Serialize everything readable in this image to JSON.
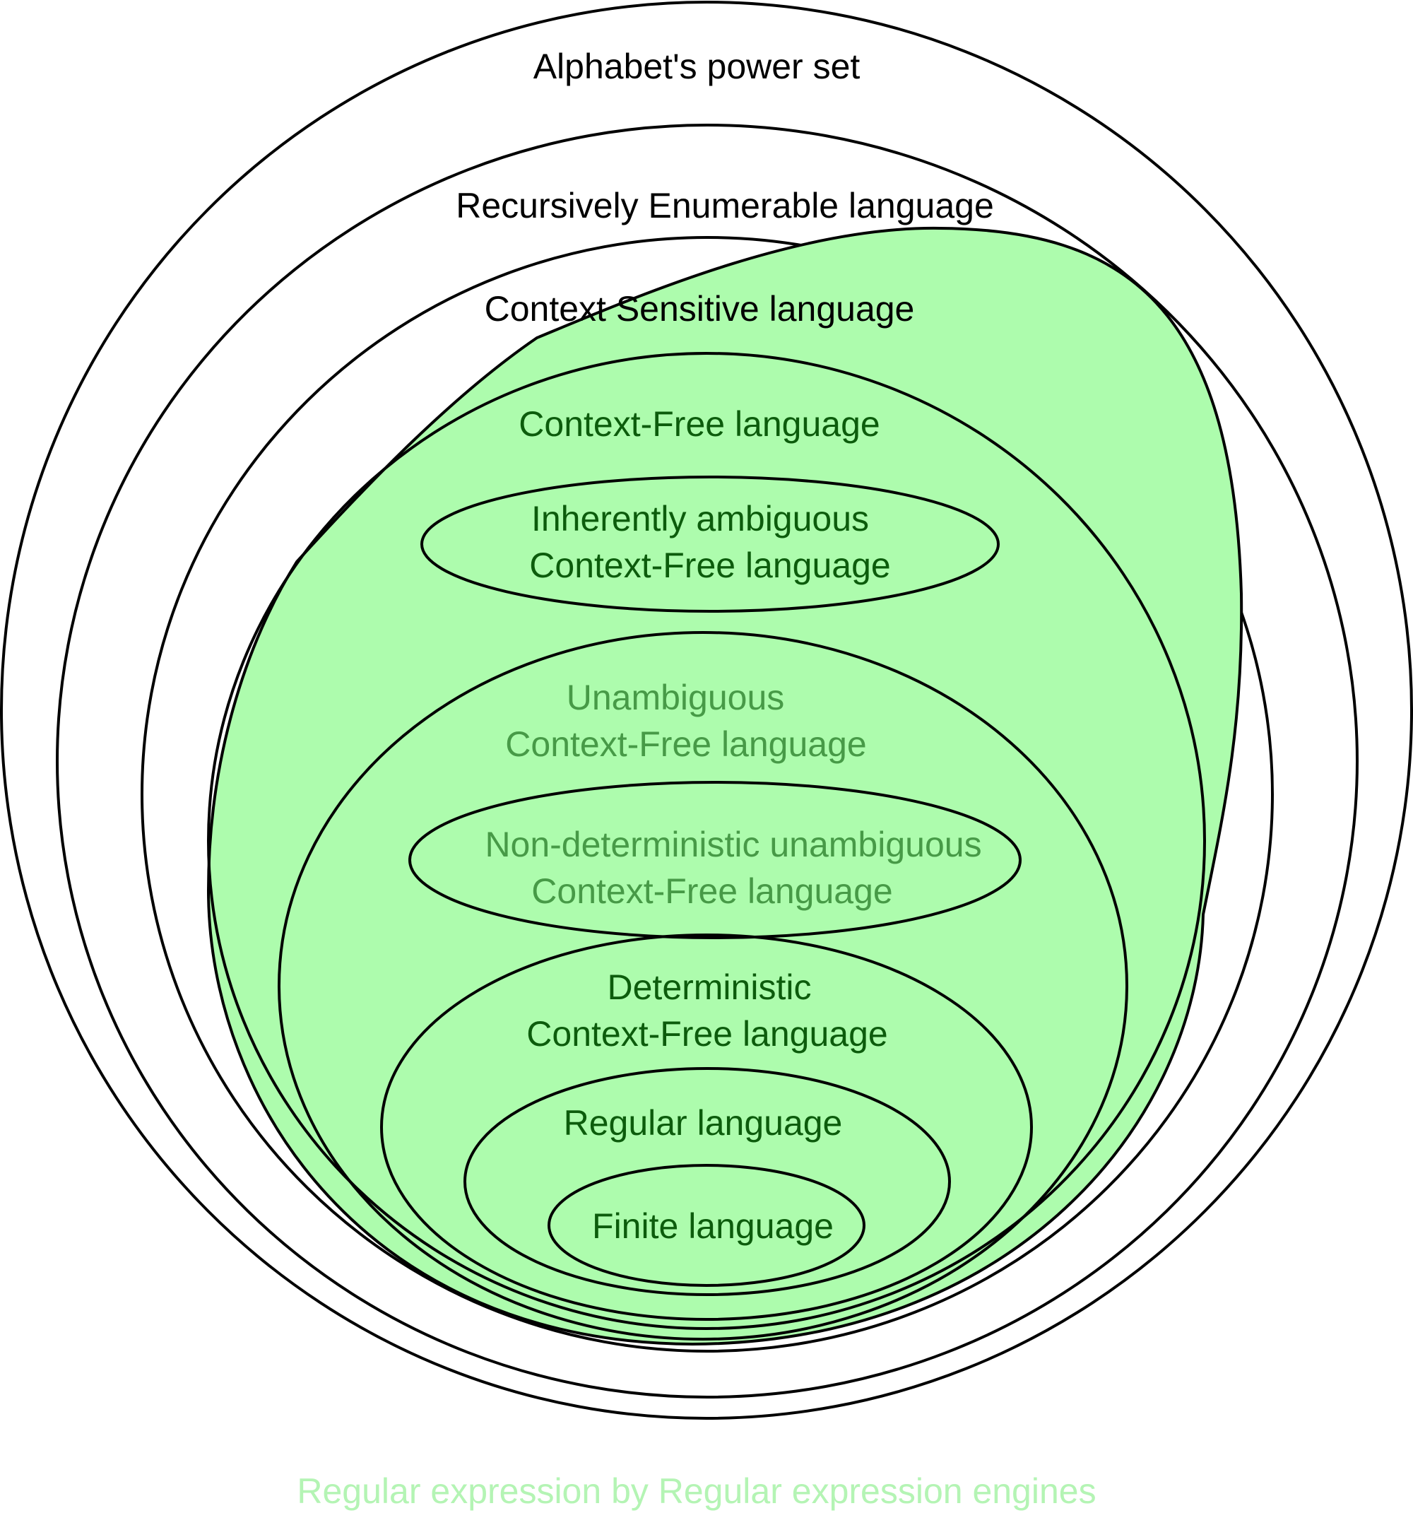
{
  "colors": {
    "region_fill": "#adfcad",
    "outline": "#000000",
    "label_black": "#000000",
    "label_dark_green": "#0c5c0c",
    "label_mid_green": "#479a47",
    "caption_light_green": "#b4f4b4"
  },
  "labels": {
    "alphabet_power_set": "Alphabet's power set",
    "recursively_enumerable": "Recursively Enumerable language",
    "context_sensitive": "Context Sensitive language",
    "context_free": "Context-Free language",
    "inherently_ambiguous_line1": "Inherently ambiguous",
    "inherently_ambiguous_line2": "Context-Free language",
    "unambiguous_line1": "Unambiguous",
    "unambiguous_line2": "Context-Free language",
    "nondeterministic_line1": "Non-deterministic unambiguous",
    "nondeterministic_line2": "Context-Free language",
    "deterministic_line1": "Deterministic",
    "deterministic_line2": "Context-Free language",
    "regular": "Regular language",
    "finite": "Finite language"
  },
  "caption": "Regular expression by Regular expression engines"
}
